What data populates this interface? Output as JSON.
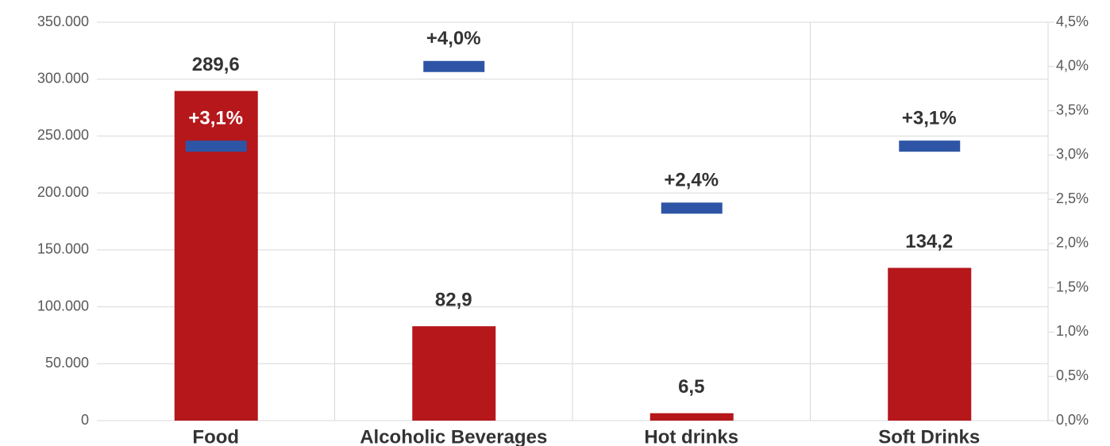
{
  "chart_data": {
    "type": "bar",
    "categories": [
      "Food",
      "Alcoholic Beverages",
      "Hot drinks",
      "Soft Drinks"
    ],
    "series": [
      {
        "type": "bar",
        "color": "#b5171b",
        "values": [
          289600,
          82900,
          6500,
          134200
        ],
        "value_labels": [
          "289,6",
          "82,9",
          "6,5",
          "134,2"
        ]
      },
      {
        "type": "marker",
        "axis": "y2",
        "color": "#2e55a5",
        "values": [
          3.1,
          4.0,
          2.4,
          3.1
        ],
        "value_labels": [
          "+3,1%",
          "+4,0%",
          "+2,4%",
          "+3,1%"
        ]
      }
    ],
    "ylim": [
      0,
      350000
    ],
    "yticks": [
      {
        "value": 0,
        "label": "0"
      },
      {
        "value": 50000,
        "label": "50.000"
      },
      {
        "value": 100000,
        "label": "100.000"
      },
      {
        "value": 150000,
        "label": "150.000"
      },
      {
        "value": 200000,
        "label": "200.000"
      },
      {
        "value": 250000,
        "label": "250.000"
      },
      {
        "value": 300000,
        "label": "300.000"
      },
      {
        "value": 350000,
        "label": "350.000"
      }
    ],
    "y2lim": [
      0,
      4.5
    ],
    "y2ticks": [
      {
        "value": 0,
        "label": "0,0%"
      },
      {
        "value": 0.5,
        "label": "0,5%"
      },
      {
        "value": 1.0,
        "label": "1,0%"
      },
      {
        "value": 1.5,
        "label": "1,5%"
      },
      {
        "value": 2.0,
        "label": "2,0%"
      },
      {
        "value": 2.5,
        "label": "2,5%"
      },
      {
        "value": 3.0,
        "label": "3,0%"
      },
      {
        "value": 3.5,
        "label": "3,5%"
      },
      {
        "value": 4.0,
        "label": "4,0%"
      },
      {
        "value": 4.5,
        "label": "4,5%"
      }
    ],
    "grid": true
  }
}
